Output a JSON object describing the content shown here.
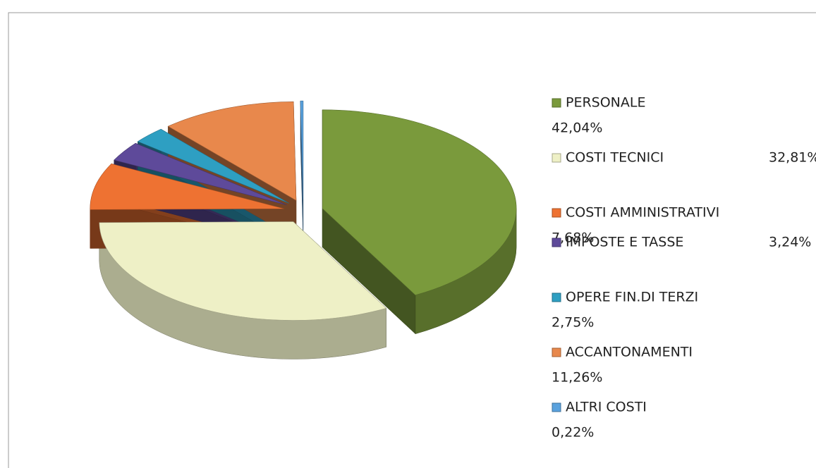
{
  "chart_data": {
    "type": "pie",
    "categories": [
      "PERSONALE",
      "COSTI TECNICI",
      "COSTI AMMINISTRATIVI",
      "IMPOSTE E TASSE",
      "OPERE FIN.DI TERZI",
      "ACCANTONAMENTI",
      "ALTRI COSTI"
    ],
    "values": [
      42.04,
      32.81,
      7.68,
      3.24,
      2.75,
      11.26,
      0.22
    ],
    "value_labels": [
      "42,04%",
      "32,81%",
      "7,68%",
      "3,24%",
      "2,75%",
      "11,26%",
      "0,22%"
    ],
    "colors": [
      "#7a9a3c",
      "#eef0c6",
      "#ee7232",
      "#5e4a9a",
      "#2e9fc2",
      "#e8884c",
      "#5aa2de"
    ],
    "legend": "right"
  }
}
